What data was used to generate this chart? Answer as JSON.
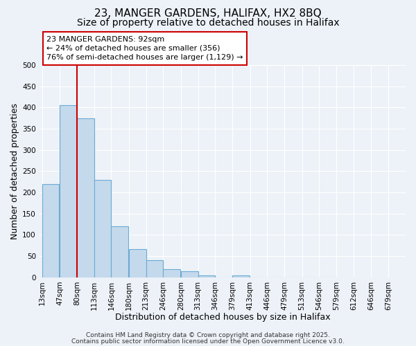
{
  "title": "23, MANGER GARDENS, HALIFAX, HX2 8BQ",
  "subtitle": "Size of property relative to detached houses in Halifax",
  "xlabel": "Distribution of detached houses by size in Halifax",
  "ylabel": "Number of detached properties",
  "bar_values": [
    220,
    405,
    375,
    230,
    120,
    67,
    40,
    20,
    15,
    5,
    0,
    5,
    0,
    0,
    0,
    0,
    0
  ],
  "bin_starts": [
    13,
    47,
    80,
    113,
    146,
    180,
    213,
    246,
    280,
    313,
    346,
    379,
    413,
    446,
    479,
    513,
    546
  ],
  "bin_width": 33,
  "tick_positions": [
    13,
    47,
    80,
    113,
    146,
    180,
    213,
    246,
    280,
    313,
    346,
    379,
    413,
    446,
    479,
    513,
    546,
    579,
    612,
    646,
    679
  ],
  "tick_labels": [
    "13sqm",
    "47sqm",
    "80sqm",
    "113sqm",
    "146sqm",
    "180sqm",
    "213sqm",
    "246sqm",
    "280sqm",
    "313sqm",
    "346sqm",
    "379sqm",
    "413sqm",
    "446sqm",
    "479sqm",
    "513sqm",
    "546sqm",
    "579sqm",
    "612sqm",
    "646sqm",
    "679sqm"
  ],
  "xlim_min": 8,
  "xlim_max": 712,
  "ylim": [
    0,
    500
  ],
  "yticks": [
    0,
    50,
    100,
    150,
    200,
    250,
    300,
    350,
    400,
    450,
    500
  ],
  "bar_color": "#c5d9ec",
  "bar_edge_color": "#6aaad4",
  "bg_color": "#edf2f8",
  "grid_color": "#ffffff",
  "vline_x": 80,
  "vline_color": "#cc0000",
  "ann_text_line1": "23 MANGER GARDENS: 92sqm",
  "ann_text_line2": "← 24% of detached houses are smaller (356)",
  "ann_text_line3": "76% of semi-detached houses are larger (1,129) →",
  "footer1": "Contains HM Land Registry data © Crown copyright and database right 2025.",
  "footer2": "Contains public sector information licensed under the Open Government Licence v3.0.",
  "title_fontsize": 11,
  "subtitle_fontsize": 10,
  "xlabel_fontsize": 9,
  "ylabel_fontsize": 9,
  "tick_fontsize": 7.5,
  "ann_fontsize": 8,
  "footer_fontsize": 6.5
}
